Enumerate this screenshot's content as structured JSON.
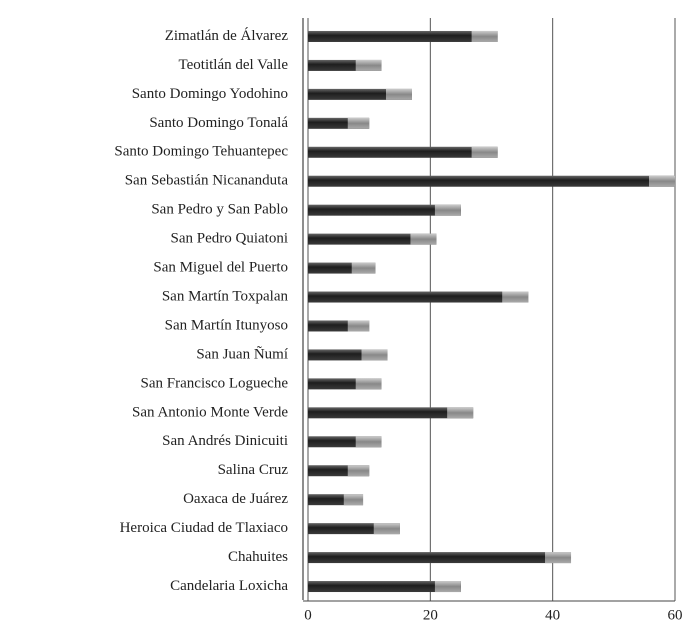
{
  "chart_data": {
    "type": "barh",
    "categories": [
      "Zimatlán de Álvarez",
      "Teotitlán del Valle",
      "Santo Domingo Yodohino",
      "Santo Domingo Tonalá",
      "Santo Domingo Tehuantepec",
      "San Sebastián Nicananduta",
      "San Pedro y San Pablo",
      "San Pedro Quiatoni",
      "San Miguel del Puerto",
      "San Martín Toxpalan",
      "San Martín Itunyoso",
      "San Juan Ñumí",
      "San Francisco Logueche",
      "San Antonio Monte Verde",
      "San Andrés Dinicuiti",
      "Salina Cruz",
      "Oaxaca de Juárez",
      "Heroica Ciudad de Tlaxiaco",
      "Chahuites",
      "Candelaria Loxicha"
    ],
    "values": [
      31,
      12,
      17,
      10,
      31,
      60,
      25,
      21,
      11,
      36,
      10,
      13,
      12,
      27,
      12,
      10,
      9,
      15,
      43,
      25
    ],
    "color": "#2e2e2e",
    "xlim": [
      0,
      60
    ],
    "xticks": [
      0,
      20,
      40,
      60
    ],
    "grid": true
  }
}
